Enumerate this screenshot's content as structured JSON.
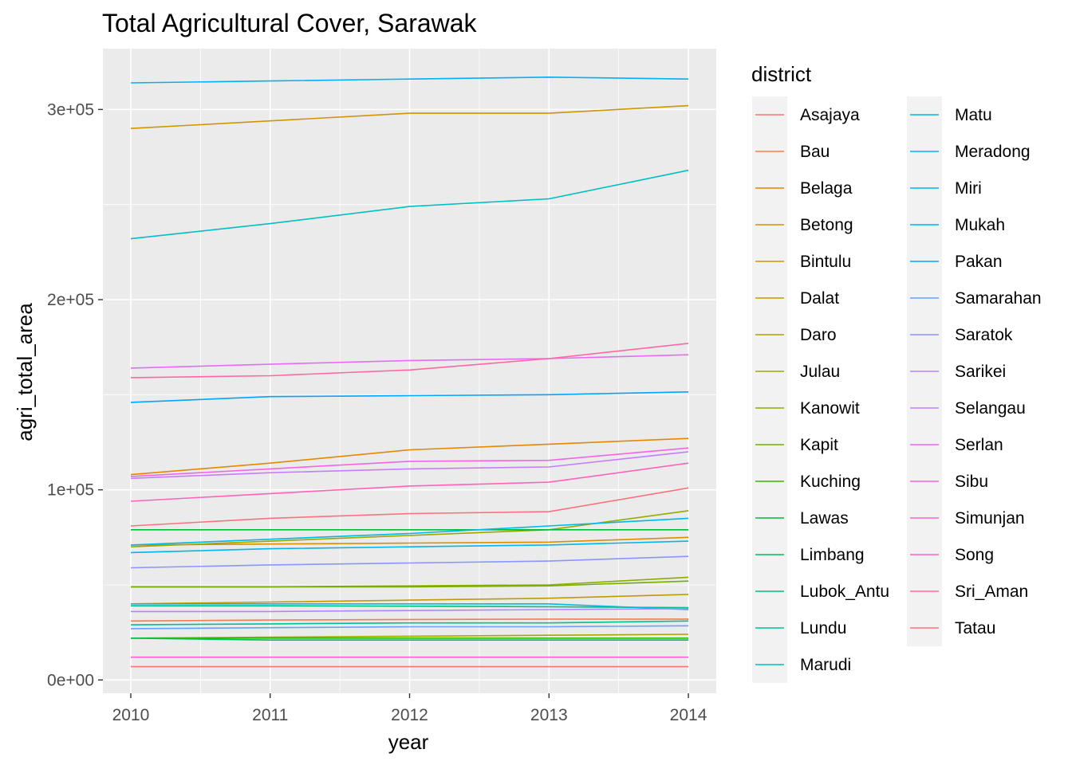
{
  "chart_data": {
    "type": "line",
    "title": "Total Agricultural Cover, Sarawak",
    "xlabel": "year",
    "ylabel": "agri_total_area",
    "x": [
      2010,
      2011,
      2012,
      2013,
      2014
    ],
    "x_tick_labels": [
      "2010",
      "2011",
      "2012",
      "2013",
      "2014"
    ],
    "y_ticks": [
      0,
      100000,
      200000,
      300000
    ],
    "y_tick_labels": [
      "0e+00",
      "1e+05",
      "2e+05",
      "3e+05"
    ],
    "xlim": [
      2009.8,
      2014.2
    ],
    "ylim": [
      -7000,
      332000
    ],
    "grid": true,
    "legend_title": "district",
    "legend_position": "right",
    "series": [
      {
        "name": "Asajaya",
        "color": "#F8766D",
        "values": [
          7000,
          7000,
          7000,
          7000,
          7000
        ]
      },
      {
        "name": "Bau",
        "color": "#F27D53",
        "values": [
          31000,
          31500,
          31800,
          32000,
          32000
        ]
      },
      {
        "name": "Belaga",
        "color": "#E58700",
        "values": [
          108000,
          114000,
          121000,
          124000,
          127000
        ]
      },
      {
        "name": "Betong",
        "color": "#D89000",
        "values": [
          71000,
          71500,
          72000,
          72500,
          75000
        ]
      },
      {
        "name": "Bintulu",
        "color": "#CD9600",
        "values": [
          290000,
          294000,
          298000,
          298000,
          302000
        ]
      },
      {
        "name": "Dalat",
        "color": "#C09B00",
        "values": [
          40000,
          41000,
          42000,
          43000,
          45000
        ]
      },
      {
        "name": "Daro",
        "color": "#AEA200",
        "values": [
          22000,
          22500,
          23000,
          23500,
          24000
        ]
      },
      {
        "name": "Julau",
        "color": "#9CA700",
        "values": [
          70000,
          73000,
          76000,
          79000,
          89000
        ]
      },
      {
        "name": "Kanowit",
        "color": "#8EAB00",
        "values": [
          49000,
          49000,
          49500,
          50000,
          54000
        ]
      },
      {
        "name": "Kapit",
        "color": "#72B000",
        "values": [
          49000,
          49000,
          49000,
          49500,
          52000
        ]
      },
      {
        "name": "Kuching",
        "color": "#39B600",
        "values": [
          22000,
          22000,
          22000,
          22000,
          22000
        ]
      },
      {
        "name": "Lawas",
        "color": "#00BA38",
        "values": [
          79000,
          79000,
          79000,
          79000,
          79000
        ]
      },
      {
        "name": "Limbang",
        "color": "#00BD5C",
        "values": [
          22000,
          21000,
          21000,
          21000,
          21000
        ]
      },
      {
        "name": "Lubok_Antu",
        "color": "#00BF7D",
        "values": [
          39000,
          39000,
          38800,
          38500,
          38000
        ]
      },
      {
        "name": "Lundu",
        "color": "#00C097",
        "values": [
          29000,
          29500,
          30000,
          30000,
          31000
        ]
      },
      {
        "name": "Marudi",
        "color": "#00BFC4",
        "values": [
          232000,
          240000,
          249000,
          253000,
          268000
        ]
      },
      {
        "name": "Matu",
        "color": "#00BBDA",
        "values": [
          40000,
          40000,
          40000,
          40000,
          37000
        ]
      },
      {
        "name": "Meradong",
        "color": "#00B6EB",
        "values": [
          67000,
          69000,
          70000,
          71000,
          73000
        ]
      },
      {
        "name": "Miri",
        "color": "#00B8E5",
        "values": [
          71000,
          74000,
          77000,
          81000,
          85000
        ]
      },
      {
        "name": "Mukah",
        "color": "#00B0F6",
        "values": [
          314000,
          315000,
          316000,
          317000,
          316000
        ]
      },
      {
        "name": "Pakan",
        "color": "#00A5FF",
        "values": [
          146000,
          149000,
          149500,
          150000,
          151500
        ]
      },
      {
        "name": "Samarahan",
        "color": "#6A9FFF",
        "values": [
          27000,
          27500,
          28000,
          28000,
          28500
        ]
      },
      {
        "name": "Saratok",
        "color": "#8A95FF",
        "values": [
          59000,
          60500,
          61500,
          62500,
          65000
        ]
      },
      {
        "name": "Sarikei",
        "color": "#AE87FF",
        "values": [
          36000,
          36000,
          36500,
          37000,
          37500
        ]
      },
      {
        "name": "Selangau",
        "color": "#C77CFF",
        "values": [
          106000,
          109000,
          111000,
          112000,
          120000
        ]
      },
      {
        "name": "Serlan",
        "color": "#E76BF3",
        "values": [
          164000,
          166000,
          168000,
          169000,
          171000
        ]
      },
      {
        "name": "Sibu",
        "color": "#F564E3",
        "values": [
          107000,
          111000,
          115000,
          115500,
          122000
        ]
      },
      {
        "name": "Simunjan",
        "color": "#FD61D1",
        "values": [
          12000,
          12000,
          12000,
          12000,
          12000
        ]
      },
      {
        "name": "Song",
        "color": "#FF62BC",
        "values": [
          94000,
          98000,
          102000,
          104000,
          114000
        ]
      },
      {
        "name": "Sri_Aman",
        "color": "#FF67A4",
        "values": [
          159000,
          160000,
          163000,
          169000,
          177000
        ]
      },
      {
        "name": "Tatau",
        "color": "#FC717F",
        "values": [
          81000,
          85000,
          87500,
          88500,
          101000
        ]
      }
    ]
  }
}
